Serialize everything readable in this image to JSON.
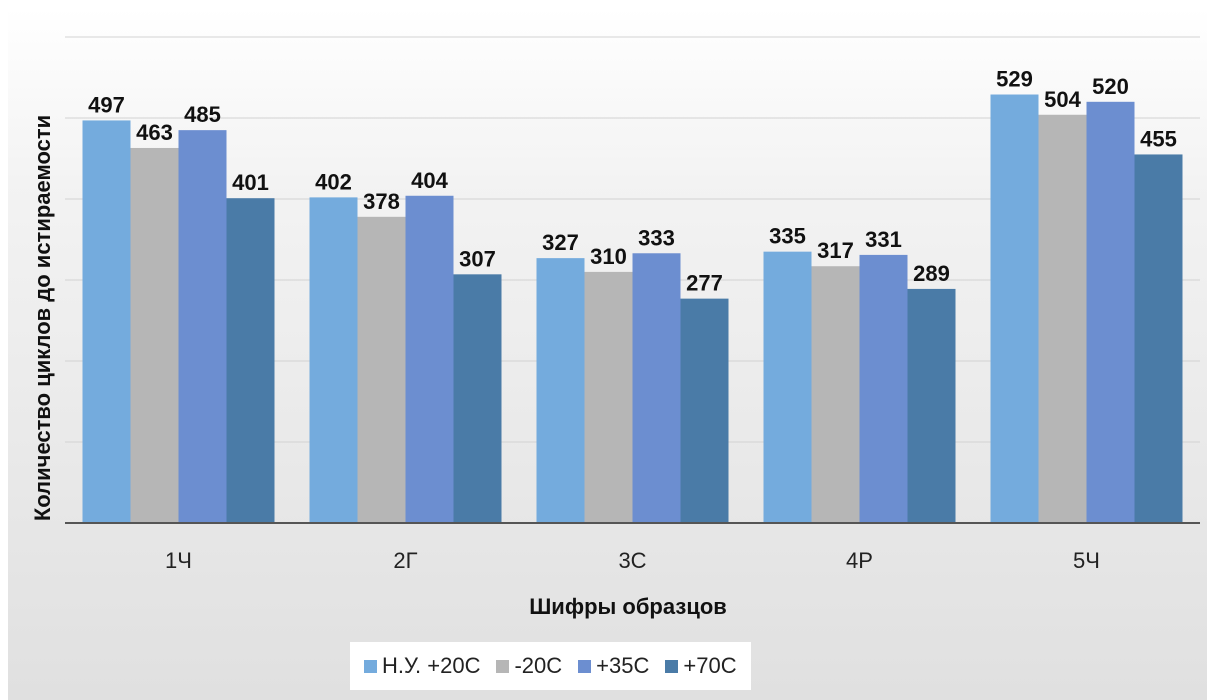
{
  "chart_data": {
    "type": "bar",
    "title": "",
    "xlabel": "Шифры образцов",
    "ylabel": "Количество циклов до истираемости",
    "categories": [
      "1Ч",
      "2Г",
      "3С",
      "4Р",
      "5Ч"
    ],
    "series": [
      {
        "name": "Н.У. +20С",
        "color": "#74ABDD",
        "values": [
          497,
          402,
          327,
          335,
          529
        ]
      },
      {
        "name": "-20С",
        "color": "#B6B6B6",
        "values": [
          463,
          378,
          310,
          317,
          504
        ]
      },
      {
        "name": "+35С",
        "color": "#6C8ED0",
        "values": [
          485,
          404,
          333,
          331,
          520
        ]
      },
      {
        "name": "+70С",
        "color": "#4A7BA7",
        "values": [
          401,
          307,
          277,
          289,
          455
        ]
      }
    ],
    "ylim": [
      0,
      600
    ],
    "grid": true,
    "legend_position": "bottom"
  }
}
